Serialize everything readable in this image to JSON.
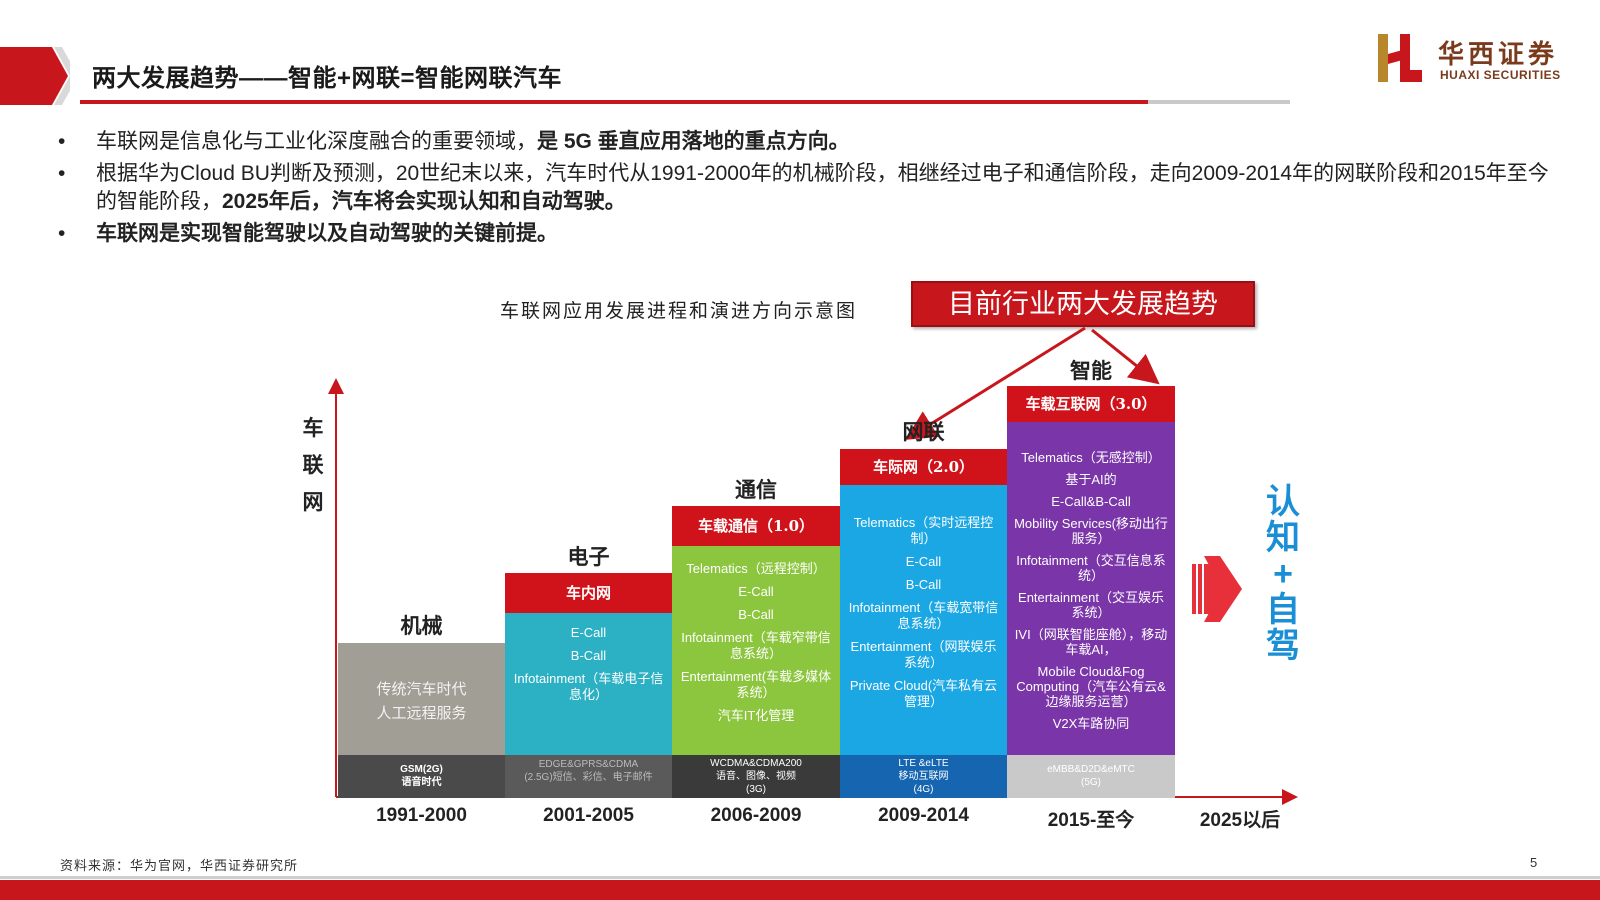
{
  "header": {
    "title": "两大发展趋势——智能+网联=智能网联汽车",
    "logo_cn": "华西证券",
    "logo_en": "HUAXI SECURITIES"
  },
  "bullets": [
    {
      "dot": "•",
      "text": "车联网是信息化与工业化深度融合的重要领域，",
      "bold": "是 5G 垂直应用落地的重点方向。"
    },
    {
      "dot": "•",
      "text": "根据华为Cloud BU判断及预测，20世纪末以来，汽车时代从1991-2000年的机械阶段，相继经过电子和通信阶段，走向2009-2014年的网联阶段和2015年至今的智能阶段，",
      "bold": "2025年后，汽车将会实现认知和自动驾驶。"
    },
    {
      "dot": "•",
      "text": "",
      "bold": "车联网是实现智能驾驶以及自动驾驶的关键前提。"
    }
  ],
  "figure": {
    "caption": "车联网应用发展进程和演进方向示意图",
    "trend_label": "目前行业两大发展趋势",
    "y_label": [
      "车",
      "联",
      "网"
    ],
    "target_label": [
      "认",
      "知",
      "+",
      "自",
      "驾"
    ],
    "last_year": "2025以后",
    "columns": [
      {
        "stage": "机械",
        "year": "1991-2000",
        "header": "",
        "body": [
          "传统汽车时代",
          "人工远程服务"
        ],
        "network": [
          "GSM(2G)",
          "语音时代"
        ],
        "color": "#a09e95",
        "net_color": "#4a4a4a"
      },
      {
        "stage": "电子",
        "year": "2001-2005",
        "header": "车内网",
        "body": [
          "E-Call",
          "B-Call",
          "Infotainment（车载电子信息化）"
        ],
        "network": [
          "EDGE&GPRS&CDMA",
          "(2.5G)短信、彩信、电子邮件"
        ],
        "color": "#2bb0c4",
        "net_color": "#5a5a5a"
      },
      {
        "stage": "通信",
        "year": "2006-2009",
        "header": "车载通信（1.0）",
        "body": [
          "Telematics（远程控制）",
          "E-Call",
          "B-Call",
          "Infotainment（车载窄带信息系统）",
          "Entertainment(车载多媒体系统）",
          "汽车IT化管理"
        ],
        "network": [
          "WCDMA&CDMA200",
          "语音、图像、视频",
          "(3G)"
        ],
        "color": "#8cc63f",
        "net_color": "#3a3a3a"
      },
      {
        "stage": "网联",
        "year": "2009-2014",
        "header": "车际网（2.0）",
        "body": [
          "Telematics（实时远程控制）",
          "E-Call",
          "B-Call",
          "Infotainment（车载宽带信息系统）",
          "Entertainment（网联娱乐系统）",
          "Private Cloud(汽车私有云管理）"
        ],
        "network": [
          "LTE &eLTE",
          "移动互联网",
          "(4G)"
        ],
        "color": "#1ba7e3",
        "net_color": "#1565b0"
      },
      {
        "stage": "智能",
        "year": "2015-至今",
        "header": "车载互联网（3.0）",
        "body": [
          "Telematics（无感控制）",
          "基于AI的",
          "E-Call&B-Call",
          "Mobility Services(移动出行服务）",
          "Infotainment（交互信息系统）",
          "Entertainment（交互娱乐系统）",
          "IVI（网联智能座舱），移动车载AI，",
          "Mobile Cloud&Fog Computing（汽车公有云&边缘服务运营）",
          "V2X车路协同"
        ],
        "network": [
          "eMBB&D2D&eMTC",
          "(5G)"
        ],
        "color": "#7a35a8",
        "net_color": "#c9c9c9"
      }
    ]
  },
  "footer": {
    "source": "资料来源：华为官网，华西证券研究所",
    "page": "5"
  },
  "colors": {
    "brand_red": "#c8161d",
    "accent_blue": "#1a8fd6"
  }
}
